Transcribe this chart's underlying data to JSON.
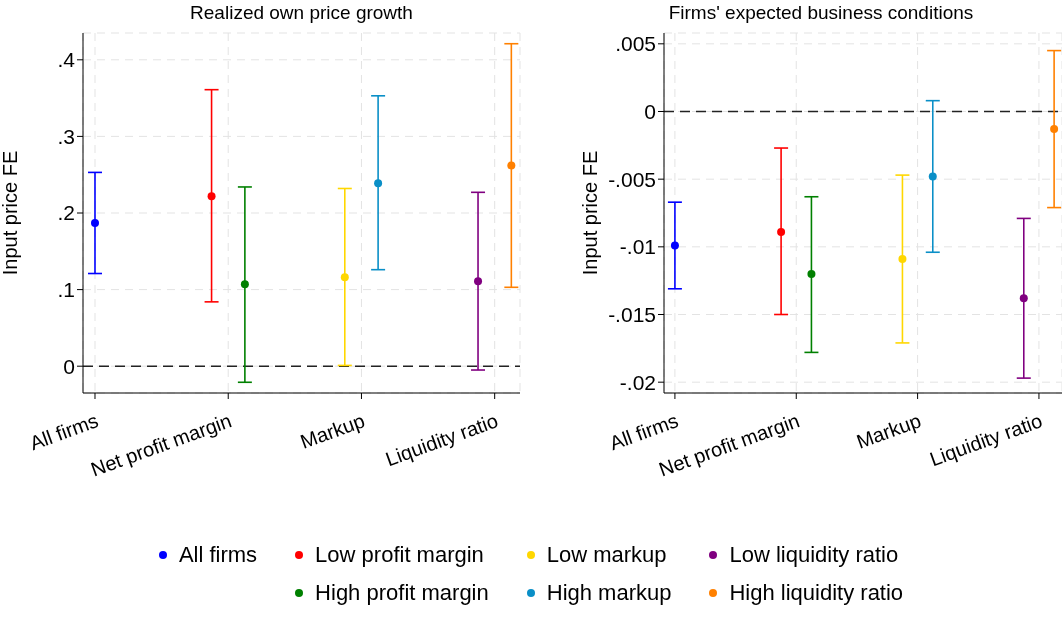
{
  "chart_data": [
    {
      "type": "scatter",
      "title": "Realized own price growth",
      "ylabel": "Input price FE",
      "categories": [
        "All firms",
        "Net profit margin",
        "Markup",
        "Liquidity ratio"
      ],
      "ylim": [
        -0.035,
        0.435
      ],
      "yticks": [
        {
          "value": 0,
          "label": "0"
        },
        {
          "value": 0.1,
          "label": ".1"
        },
        {
          "value": 0.2,
          "label": ".2"
        },
        {
          "value": 0.3,
          "label": ".3"
        },
        {
          "value": 0.4,
          "label": ".4"
        }
      ],
      "grid": true,
      "marker": "circle",
      "legend": "bottom",
      "ref_lines": [
        {
          "axis": "y",
          "value": 0,
          "color": "#222222",
          "line_style": "dashed"
        }
      ],
      "series": [
        {
          "name": "All firms",
          "color": "#0000ff",
          "x": [
            "All firms"
          ],
          "values": [
            0.187
          ],
          "errors": [
            [
              0.121,
              0.253
            ]
          ]
        },
        {
          "name": "Low profit margin",
          "color": "#ff0000",
          "x": [
            "Net profit margin"
          ],
          "values": [
            0.222
          ],
          "errors": [
            [
              0.084,
              0.361
            ]
          ]
        },
        {
          "name": "High profit margin",
          "color": "#008000",
          "x": [
            "Net profit margin"
          ],
          "values": [
            0.107
          ],
          "errors": [
            [
              -0.021,
              0.234
            ]
          ]
        },
        {
          "name": "Low markup",
          "color": "#ffd700",
          "x": [
            "Markup"
          ],
          "values": [
            0.116
          ],
          "errors": [
            [
              0.001,
              0.232
            ]
          ]
        },
        {
          "name": "High markup",
          "color": "#0a8fc7",
          "x": [
            "Markup"
          ],
          "values": [
            0.239
          ],
          "errors": [
            [
              0.126,
              0.353
            ]
          ]
        },
        {
          "name": "Low liquidity ratio",
          "color": "#800080",
          "x": [
            "Liquidity ratio"
          ],
          "values": [
            0.111
          ],
          "errors": [
            [
              -0.005,
              0.227
            ]
          ]
        },
        {
          "name": "High liquidity ratio",
          "color": "#ff8000",
          "x": [
            "Liquidity ratio"
          ],
          "values": [
            0.262
          ],
          "errors": [
            [
              0.103,
              0.421
            ]
          ]
        }
      ]
    },
    {
      "type": "scatter",
      "title": "Firms' expected business conditions",
      "ylabel": "Input price FE",
      "categories": [
        "All firms",
        "Net profit margin",
        "Markup",
        "Liquidity ratio"
      ],
      "ylim": [
        -0.0208,
        0.0058
      ],
      "yticks": [
        {
          "value": -0.02,
          "label": "-.02"
        },
        {
          "value": -0.015,
          "label": "-.015"
        },
        {
          "value": -0.01,
          "label": "-.01"
        },
        {
          "value": -0.005,
          "label": "-.005"
        },
        {
          "value": 0,
          "label": "0"
        },
        {
          "value": 0.005,
          "label": ".005"
        }
      ],
      "grid": true,
      "marker": "circle",
      "ref_lines": [
        {
          "axis": "y",
          "value": 0,
          "color": "#222222",
          "line_style": "dashed"
        }
      ],
      "series": [
        {
          "color": "#0000ff",
          "x": [
            "All firms"
          ],
          "values": [
            -0.0099
          ],
          "errors": [
            [
              -0.0131,
              -0.0067
            ]
          ]
        },
        {
          "color": "#ff0000",
          "x": [
            "Net profit margin"
          ],
          "values": [
            -0.0089
          ],
          "errors": [
            [
              -0.015,
              -0.0027
            ]
          ]
        },
        {
          "color": "#008000",
          "x": [
            "Net profit margin"
          ],
          "values": [
            -0.012
          ],
          "errors": [
            [
              -0.0178,
              -0.0063
            ]
          ]
        },
        {
          "color": "#ffd700",
          "x": [
            "Markup"
          ],
          "values": [
            -0.0109
          ],
          "errors": [
            [
              -0.0171,
              -0.0047
            ]
          ]
        },
        {
          "color": "#0a8fc7",
          "x": [
            "Markup"
          ],
          "values": [
            -0.0048
          ],
          "errors": [
            [
              -0.0104,
              0.0008
            ]
          ]
        },
        {
          "color": "#800080",
          "x": [
            "Liquidity ratio"
          ],
          "values": [
            -0.0138
          ],
          "errors": [
            [
              -0.0197,
              -0.0079
            ]
          ]
        },
        {
          "color": "#ff8000",
          "x": [
            "Liquidity ratio"
          ],
          "values": [
            -0.0013
          ],
          "errors": [
            [
              -0.0071,
              0.0045
            ]
          ]
        }
      ]
    }
  ]
}
